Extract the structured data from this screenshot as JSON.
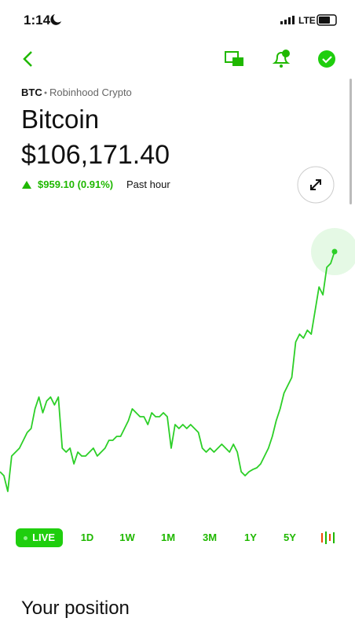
{
  "status_bar": {
    "time": "1:14",
    "network": "LTE"
  },
  "header": {
    "symbol": "BTC",
    "source": "Robinhood Crypto",
    "name": "Bitcoin",
    "price": "$106,171.40",
    "change": "$959.10 (0.91%)",
    "period": "Past hour"
  },
  "chart_data": {
    "type": "line",
    "color": "#2ccf27",
    "values": [
      105219,
      105202,
      105134,
      105287,
      105304,
      105321,
      105355,
      105389,
      105406,
      105491,
      105542,
      105474,
      105525,
      105542,
      105508,
      105542,
      105321,
      105304,
      105321,
      105253,
      105304,
      105287,
      105287,
      105304,
      105321,
      105287,
      105304,
      105321,
      105355,
      105355,
      105372,
      105372,
      105406,
      105440,
      105491,
      105474,
      105457,
      105457,
      105423,
      105474,
      105457,
      105457,
      105474,
      105457,
      105321,
      105423,
      105406,
      105423,
      105406,
      105423,
      105406,
      105389,
      105321,
      105304,
      105321,
      105304,
      105321,
      105338,
      105321,
      105304,
      105338,
      105304,
      105219,
      105202,
      105219,
      105229,
      105236,
      105253,
      105287,
      105321,
      105372,
      105440,
      105491,
      105559,
      105593,
      105627,
      105780,
      105814,
      105797,
      105831,
      105814,
      105916,
      106018,
      105984,
      106103,
      106120,
      106171
    ],
    "ylim": [
      105083,
      106239
    ]
  },
  "range_tabs": [
    "LIVE",
    "1D",
    "1W",
    "1M",
    "3M",
    "1Y",
    "5Y"
  ],
  "section": {
    "title": "Your position"
  }
}
